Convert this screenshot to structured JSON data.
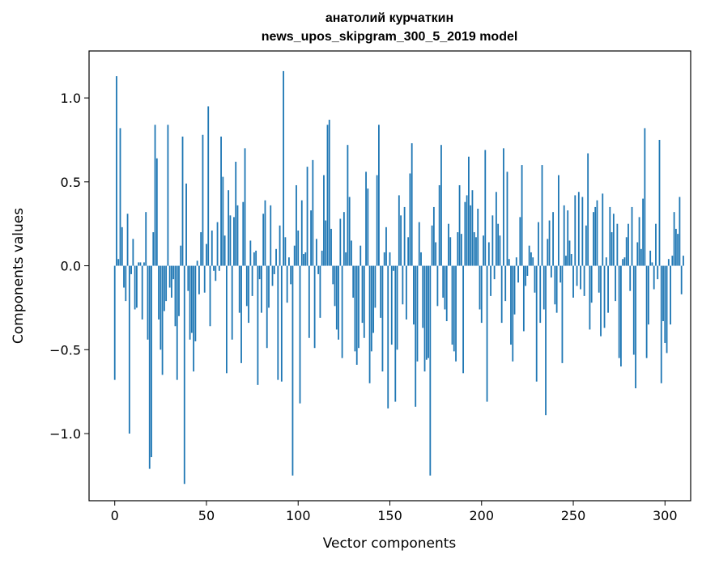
{
  "chart_data": {
    "type": "bar",
    "title": [
      "анатолий курчаткин",
      "news_upos_skipgram_300_5_2019 model"
    ],
    "xlabel": "Vector components",
    "ylabel": "Components values",
    "xlim": [
      -14,
      314
    ],
    "ylim": [
      -1.4,
      1.28
    ],
    "xticks": [
      0,
      50,
      100,
      150,
      200,
      250,
      300
    ],
    "yticks": [
      -1.0,
      -0.5,
      0.0,
      0.5,
      1.0
    ],
    "ytick_labels": [
      "−1.0",
      "−0.5",
      "0.0",
      "0.5",
      "1.0"
    ],
    "grid": false,
    "bar_color": "#1f77b4",
    "values": [
      -0.68,
      1.13,
      0.04,
      0.82,
      0.23,
      -0.13,
      -0.21,
      0.31,
      -1.0,
      -0.05,
      0.16,
      -0.26,
      -0.25,
      0.02,
      0.02,
      -0.32,
      0.02,
      0.32,
      -0.44,
      -1.21,
      -1.14,
      0.2,
      0.84,
      0.64,
      -0.32,
      -0.5,
      -0.65,
      -0.27,
      -0.21,
      0.84,
      -0.13,
      -0.19,
      -0.08,
      -0.36,
      -0.68,
      -0.3,
      0.12,
      0.77,
      -1.3,
      0.49,
      -0.15,
      -0.44,
      -0.4,
      -0.63,
      -0.45,
      0.03,
      -0.17,
      0.2,
      0.78,
      -0.16,
      0.13,
      0.95,
      -0.36,
      0.21,
      -0.03,
      -0.09,
      0.26,
      -0.03,
      0.77,
      0.53,
      0.18,
      -0.64,
      0.45,
      0.3,
      -0.44,
      0.29,
      0.62,
      0.36,
      -0.28,
      -0.58,
      0.38,
      0.7,
      -0.24,
      -0.34,
      0.15,
      -0.18,
      0.08,
      0.09,
      -0.71,
      -0.08,
      -0.28,
      0.31,
      0.39,
      -0.49,
      -0.25,
      0.36,
      -0.12,
      -0.05,
      0.1,
      -0.68,
      0.24,
      -0.69,
      1.16,
      0.17,
      -0.22,
      0.05,
      -0.11,
      -1.25,
      0.12,
      0.48,
      0.21,
      -0.82,
      0.39,
      0.07,
      0.08,
      0.59,
      -0.43,
      0.33,
      0.63,
      -0.49,
      0.16,
      -0.05,
      -0.31,
      0.09,
      0.54,
      0.27,
      0.84,
      0.87,
      0.22,
      -0.11,
      -0.24,
      -0.38,
      -0.44,
      0.28,
      -0.55,
      0.32,
      0.08,
      0.72,
      0.41,
      0.15,
      -0.19,
      -0.51,
      -0.59,
      -0.49,
      0.12,
      -0.34,
      -0.43,
      0.56,
      0.46,
      -0.7,
      -0.51,
      -0.4,
      -0.25,
      0.54,
      0.84,
      -0.31,
      -0.63,
      0.08,
      0.23,
      -0.85,
      0.08,
      -0.47,
      -0.03,
      -0.81,
      -0.5,
      0.42,
      0.3,
      -0.23,
      0.35,
      -0.32,
      0.17,
      0.55,
      0.73,
      -0.35,
      -0.84,
      -0.57,
      0.26,
      0.08,
      -0.37,
      -0.63,
      -0.56,
      -0.55,
      -1.25,
      0.24,
      0.35,
      0.14,
      -0.24,
      0.48,
      0.72,
      -0.19,
      -0.26,
      -0.33,
      0.25,
      0.17,
      -0.47,
      -0.51,
      -0.57,
      0.2,
      0.48,
      0.19,
      -0.64,
      0.38,
      0.42,
      0.65,
      0.36,
      0.45,
      0.2,
      0.17,
      0.34,
      -0.26,
      -0.34,
      0.18,
      0.69,
      -0.81,
      0.14,
      -0.18,
      0.3,
      -0.08,
      0.44,
      0.25,
      0.18,
      -0.34,
      0.7,
      -0.21,
      0.56,
      0.04,
      -0.47,
      -0.57,
      -0.29,
      0.05,
      -0.1,
      0.29,
      0.6,
      -0.39,
      -0.12,
      -0.06,
      0.12,
      0.08,
      0.05,
      -0.16,
      -0.69,
      0.26,
      -0.34,
      0.6,
      -0.26,
      -0.89,
      0.16,
      0.27,
      -0.07,
      0.32,
      -0.23,
      -0.28,
      0.54,
      -0.1,
      -0.58,
      0.36,
      0.06,
      0.33,
      0.15,
      0.07,
      -0.19,
      0.42,
      -0.12,
      0.44,
      -0.14,
      0.41,
      -0.18,
      0.24,
      0.67,
      -0.38,
      -0.22,
      0.32,
      0.35,
      0.39,
      -0.16,
      -0.42,
      0.43,
      -0.37,
      0.05,
      -0.28,
      0.35,
      0.2,
      0.31,
      -0.21,
      0.25,
      -0.55,
      -0.6,
      0.04,
      0.05,
      0.17,
      0.25,
      -0.15,
      0.35,
      -0.53,
      -0.73,
      0.14,
      0.29,
      0.1,
      0.4,
      0.82,
      -0.55,
      -0.35,
      0.09,
      0.02,
      -0.14,
      0.25,
      -0.08,
      0.75,
      -0.7,
      -0.33,
      -0.46,
      -0.52,
      0.04,
      -0.35,
      0.06,
      0.32,
      0.22,
      0.19,
      0.41,
      -0.17,
      0.06
    ]
  }
}
